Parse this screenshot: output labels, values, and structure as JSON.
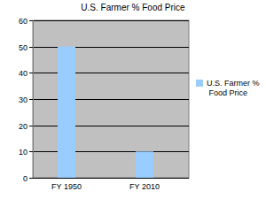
{
  "chart_data": {
    "type": "bar",
    "title": "U.S. Farmer % Food Price",
    "categories": [
      "FY 1950",
      "FY 2010"
    ],
    "series": [
      {
        "name": "U.S. Farmer % Food Price",
        "color": "#99ccff",
        "values": [
          50,
          10
        ]
      }
    ],
    "ylim": [
      0,
      60
    ],
    "yticks": [
      0,
      10,
      20,
      30,
      40,
      50,
      60
    ],
    "grid": true,
    "legend": "right"
  }
}
